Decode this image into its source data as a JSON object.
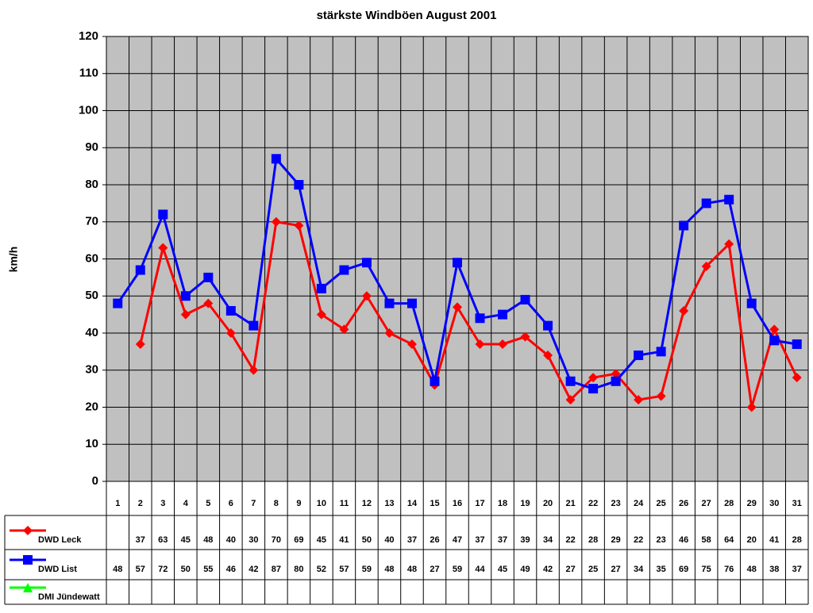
{
  "chart_data": {
    "type": "line",
    "title": "stärkste Windböen August 2001",
    "y_label": "km/h",
    "categories": [
      "1",
      "2",
      "3",
      "4",
      "5",
      "6",
      "7",
      "8",
      "9",
      "10",
      "11",
      "12",
      "13",
      "14",
      "15",
      "16",
      "17",
      "18",
      "19",
      "20",
      "21",
      "22",
      "23",
      "24",
      "25",
      "26",
      "27",
      "28",
      "29",
      "30",
      "31"
    ],
    "series": [
      {
        "name": "DWD Leck",
        "color": "#ff0000",
        "marker": "diamond",
        "values": [
          null,
          37,
          63,
          45,
          48,
          40,
          30,
          70,
          69,
          45,
          41,
          50,
          40,
          37,
          26,
          47,
          37,
          37,
          39,
          34,
          22,
          28,
          29,
          22,
          23,
          46,
          58,
          64,
          20,
          41,
          28
        ]
      },
      {
        "name": "DWD List",
        "color": "#0000ff",
        "marker": "square",
        "values": [
          48,
          57,
          72,
          50,
          55,
          46,
          42,
          87,
          80,
          52,
          57,
          59,
          48,
          48,
          27,
          59,
          44,
          45,
          49,
          42,
          27,
          25,
          27,
          34,
          35,
          69,
          75,
          76,
          48,
          38,
          37
        ]
      },
      {
        "name": "DMI Jündewatt",
        "color": "#00ff00",
        "marker": "triangle",
        "values": [
          null,
          null,
          null,
          null,
          null,
          null,
          null,
          null,
          null,
          null,
          null,
          null,
          null,
          null,
          null,
          null,
          null,
          null,
          null,
          null,
          null,
          null,
          null,
          null,
          null,
          null,
          null,
          null,
          null,
          null,
          null
        ]
      }
    ],
    "ylim": [
      0,
      120
    ],
    "yticks": [
      0,
      10,
      20,
      30,
      40,
      50,
      60,
      70,
      80,
      90,
      100,
      110,
      120
    ],
    "grid": true,
    "data_table": true
  }
}
